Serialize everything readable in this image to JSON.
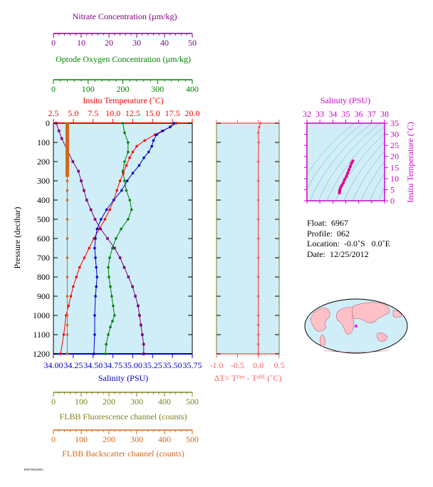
{
  "colors": {
    "nitrate": "#800080",
    "oxygen": "#008000",
    "temperature": "#ff0000",
    "salinity": "#0000cc",
    "fluorescence": "#808020",
    "backscatter": "#d2691e",
    "delta_t": "#ff6060",
    "ts_axis": "#cc00cc",
    "plot_bg": "#cfeef8"
  },
  "float_info": {
    "float": "Float:  6967",
    "profile": "Profile:  062",
    "location": "Location:  -0.0˚S   0.0˚E",
    "date": "Date:  12/25/2012"
  },
  "footer_text": "T6967W0620RG",
  "chart_data": [
    {
      "type": "line",
      "name": "main-profile",
      "ylabel": "Pressure (decibar)",
      "ylim": [
        1200,
        0
      ],
      "yticks": [
        "0",
        "100",
        "200",
        "300",
        "400",
        "500",
        "600",
        "700",
        "800",
        "900",
        "1000",
        "1100",
        "1200"
      ],
      "axes": {
        "nitrate": {
          "label": "Nitrate Concentration (µm/kg)",
          "range": [
            0,
            50
          ],
          "ticks": [
            "0",
            "10",
            "20",
            "30",
            "40",
            "50"
          ]
        },
        "oxygen": {
          "label": "Optode Oxygen Concentration (µm/kg)",
          "range": [
            0,
            400
          ],
          "ticks": [
            "0",
            "100",
            "200",
            "300",
            "400"
          ]
        },
        "temperature": {
          "label": "Insitu Temperature (˚C)",
          "range": [
            2.5,
            20.0
          ],
          "ticks": [
            "2.5",
            "5.0",
            "7.5",
            "10.0",
            "12.5",
            "15.0",
            "17.5",
            "20.0"
          ]
        },
        "salinity": {
          "label": "Salinity (PSU)",
          "range": [
            34.0,
            35.75
          ],
          "ticks": [
            "34.00",
            "34.25",
            "34.50",
            "34.75",
            "35.00",
            "35.25",
            "35.50",
            "35.75"
          ]
        },
        "fluorescence": {
          "label": "FLBB Fluorescence channel (counts)",
          "range": [
            0,
            500
          ],
          "ticks": [
            "0",
            "100",
            "200",
            "300",
            "400",
            "500"
          ]
        },
        "backscatter": {
          "label": "FLBB Backscatter channel (counts)",
          "range": [
            0,
            500
          ],
          "ticks": [
            "0",
            "100",
            "200",
            "300",
            "400",
            "500"
          ]
        }
      },
      "series": [
        {
          "name": "Insitu Temperature",
          "axis": "temperature",
          "x": [
            18.0,
            17.2,
            16.2,
            15.3,
            14.0,
            13.0,
            12.5,
            12.1,
            11.7,
            11.3,
            10.9,
            10.5,
            10.1,
            9.6,
            9.0,
            8.3,
            7.6,
            7.0,
            6.4,
            5.8,
            5.4,
            5.0,
            4.7,
            4.4,
            4.1,
            3.8,
            3.4
          ],
          "y": [
            0,
            20,
            40,
            60,
            90,
            120,
            150,
            180,
            220,
            260,
            300,
            350,
            400,
            450,
            500,
            550,
            600,
            650,
            700,
            750,
            800,
            850,
            900,
            950,
            1000,
            1100,
            1200
          ]
        },
        {
          "name": "Salinity",
          "axis": "salinity",
          "x": [
            35.52,
            35.47,
            35.38,
            35.3,
            35.26,
            35.24,
            35.2,
            35.14,
            35.08,
            35.0,
            34.93,
            34.86,
            34.76,
            34.67,
            34.6,
            34.55,
            34.53,
            34.52,
            34.53,
            34.54,
            34.55,
            34.54,
            34.53,
            34.52,
            34.52,
            34.51
          ],
          "y": [
            0,
            20,
            40,
            60,
            90,
            120,
            150,
            180,
            220,
            260,
            300,
            350,
            400,
            450,
            500,
            550,
            600,
            650,
            700,
            750,
            800,
            850,
            900,
            1000,
            1100,
            1200
          ]
        },
        {
          "name": "Optode Oxygen Concentration",
          "axis": "oxygen",
          "x": [
            200,
            205,
            215,
            215,
            205,
            200,
            205,
            210,
            220,
            225,
            215,
            195,
            180,
            170,
            162,
            158,
            160,
            164,
            168,
            172,
            176,
            170,
            164,
            158,
            152,
            150
          ],
          "y": [
            0,
            50,
            100,
            150,
            200,
            250,
            300,
            350,
            400,
            450,
            500,
            550,
            600,
            650,
            700,
            750,
            800,
            850,
            900,
            950,
            1000,
            1030,
            1060,
            1100,
            1150,
            1200
          ]
        },
        {
          "name": "Nitrate Concentration",
          "axis": "nitrate",
          "x": [
            1.0,
            2.0,
            3.0,
            5.0,
            7.0,
            9.0,
            10.0,
            11.0,
            12.0,
            13.5,
            15.0,
            17.0,
            19.5,
            22.0,
            24.0,
            25.5,
            27.0,
            28.5,
            29.5,
            30.5,
            31.0,
            31.5,
            32.0,
            32.5,
            32.5,
            32.5
          ],
          "y": [
            0,
            40,
            80,
            140,
            200,
            250,
            300,
            350,
            400,
            450,
            500,
            550,
            600,
            650,
            700,
            750,
            800,
            850,
            900,
            950,
            1000,
            1050,
            1100,
            1150,
            1200,
            1200
          ]
        },
        {
          "name": "FLBB Backscatter channel",
          "axis": "backscatter",
          "x": [
            50,
            50,
            50,
            50,
            50,
            50,
            50,
            50,
            50,
            50,
            50,
            50,
            50,
            50,
            50
          ],
          "y": [
            0,
            100,
            200,
            300,
            350,
            400,
            500,
            600,
            700,
            800,
            900,
            1000,
            1050,
            1100,
            1200
          ]
        }
      ]
    },
    {
      "type": "line",
      "name": "delta-t",
      "xlabel": "ΔT= Tᴼᵖᵗ - Tˢᴮᴱ (˚C)",
      "xlim": [
        -1.0,
        0.5
      ],
      "xticks": [
        "-1.0",
        "-0.5",
        "0.0",
        "0.5"
      ],
      "ylim": [
        1200,
        0
      ],
      "series": [
        {
          "name": "Delta T",
          "x": [
            0.05,
            0.02,
            0.0,
            0.01,
            0.0,
            0.0,
            0.0,
            0.0,
            0.0,
            0.0,
            0.0,
            0.0,
            0.0,
            0.0,
            0.0,
            0.0,
            0.0,
            0.0
          ],
          "y": [
            0,
            20,
            50,
            100,
            200,
            300,
            400,
            500,
            600,
            700,
            800,
            900,
            1000,
            1050,
            1100,
            1150,
            1200,
            1200
          ]
        }
      ]
    },
    {
      "type": "scatter",
      "name": "ts-diagram",
      "xlabel": "Salinity (PSU)",
      "ylabel": "Insitu Temperature (˚C)",
      "xlim": [
        32,
        38
      ],
      "ylim": [
        0,
        35
      ],
      "xticks": [
        "32",
        "33",
        "34",
        "35",
        "36",
        "37",
        "38"
      ],
      "yticks": [
        "0",
        "5",
        "10",
        "15",
        "20",
        "25",
        "30",
        "35"
      ],
      "series": [
        {
          "name": "T-S",
          "x": [
            35.55,
            35.45,
            35.35,
            35.25,
            35.15,
            35.05,
            34.9,
            34.8,
            34.7,
            34.6,
            34.55,
            34.52,
            34.52,
            34.51
          ],
          "y": [
            18.0,
            17.0,
            15.5,
            14.0,
            12.5,
            11.0,
            9.5,
            8.0,
            7.0,
            6.0,
            5.0,
            4.5,
            4.0,
            3.5
          ]
        }
      ]
    }
  ]
}
